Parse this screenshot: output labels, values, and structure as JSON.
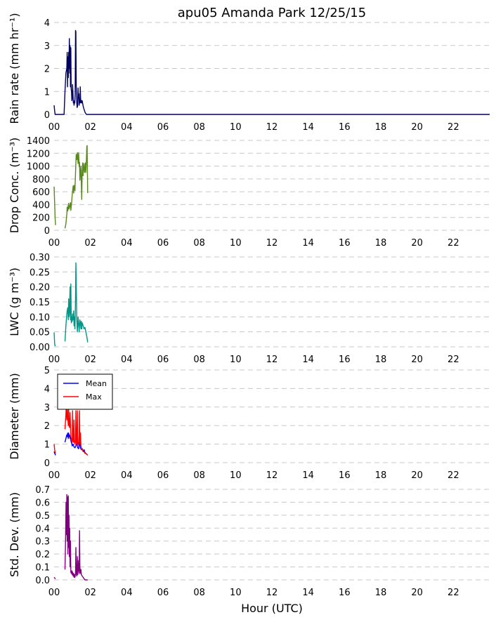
{
  "title": "apu05 Amanda Park 12/25/15",
  "xlabel": "Hour (UTC)",
  "x_tick_labels": [
    "00",
    "02",
    "04",
    "06",
    "08",
    "10",
    "12",
    "14",
    "16",
    "18",
    "20",
    "22"
  ],
  "chart_data": [
    {
      "type": "line",
      "id": "rain",
      "ylabel": "Rain rate (mm hr⁻¹)",
      "ylim": [
        0,
        4
      ],
      "yticks": [
        0,
        1,
        2,
        3,
        4
      ],
      "xlim": [
        0,
        24
      ],
      "grid": true,
      "series": [
        {
          "color": "#000060",
          "x": [
            0.0,
            0.03,
            0.06,
            0.3,
            0.55,
            0.6,
            0.65,
            0.7,
            0.72,
            0.74,
            0.76,
            0.78,
            0.8,
            0.82,
            0.84,
            0.86,
            0.88,
            0.9,
            0.92,
            0.94,
            0.96,
            0.98,
            1.0,
            1.02,
            1.04,
            1.06,
            1.08,
            1.1,
            1.12,
            1.14,
            1.16,
            1.18,
            1.2,
            1.22,
            1.25,
            1.27,
            1.3,
            1.32,
            1.34,
            1.36,
            1.38,
            1.4,
            1.42,
            1.44,
            1.46,
            1.48,
            1.5,
            1.52,
            1.55,
            1.58,
            1.62,
            1.66,
            1.7,
            1.74,
            1.78,
            1.82,
            1.86,
            1.9,
            24.0
          ],
          "y": [
            0.4,
            0.15,
            0.0,
            0.0,
            0.0,
            1.0,
            1.8,
            2.0,
            2.7,
            1.2,
            2.5,
            1.6,
            2.7,
            2.0,
            3.3,
            1.8,
            3.0,
            1.2,
            2.9,
            1.1,
            1.0,
            0.6,
            0.7,
            1.3,
            0.9,
            0.5,
            0.6,
            0.4,
            0.5,
            0.5,
            0.9,
            3.65,
            3.6,
            1.2,
            0.5,
            0.3,
            0.4,
            1.15,
            0.7,
            0.9,
            0.4,
            0.6,
            0.5,
            1.2,
            0.7,
            0.5,
            0.6,
            0.5,
            0.6,
            0.45,
            0.3,
            0.2,
            0.1,
            0.05,
            0.0,
            0.0,
            0.0,
            0.0,
            0.0
          ]
        }
      ]
    },
    {
      "type": "line",
      "id": "conc",
      "ylabel": "Drop Conc. (m⁻³)",
      "ylim": [
        0,
        1400
      ],
      "yticks": [
        0,
        200,
        400,
        600,
        800,
        1000,
        1200,
        1400
      ],
      "xlim": [
        0,
        24
      ],
      "grid": true,
      "series": [
        {
          "color": "#5a8a1e",
          "segments": [
            {
              "x": [
                0.0,
                0.03,
                0.06,
                0.08
              ],
              "y": [
                680,
                420,
                180,
                80
              ]
            },
            {
              "x": [
                0.6,
                0.65,
                0.7,
                0.72,
                0.75,
                0.78,
                0.8,
                0.82,
                0.85,
                0.88,
                0.9,
                0.92,
                0.95,
                0.98,
                1.0,
                1.02,
                1.05,
                1.08,
                1.1,
                1.12,
                1.15,
                1.18,
                1.2,
                1.22,
                1.25,
                1.28,
                1.3,
                1.32,
                1.35,
                1.38,
                1.4,
                1.42,
                1.45,
                1.48,
                1.5,
                1.52,
                1.55,
                1.58,
                1.6,
                1.62,
                1.65,
                1.68,
                1.7,
                1.72,
                1.75,
                1.78,
                1.8,
                1.82,
                1.85
              ],
              "y": [
                30,
                100,
                250,
                360,
                300,
                390,
                420,
                330,
                360,
                400,
                430,
                310,
                380,
                480,
                560,
                600,
                690,
                580,
                700,
                640,
                620,
                900,
                1050,
                1180,
                1100,
                1210,
                1150,
                1040,
                1210,
                990,
                1060,
                780,
                900,
                1000,
                700,
                480,
                920,
                1050,
                850,
                1040,
                960,
                900,
                1030,
                1050,
                900,
                1100,
                1300,
                1320,
                580
              ]
            }
          ]
        }
      ]
    },
    {
      "type": "line",
      "id": "lwc",
      "ylabel": "LWC (g m⁻³)",
      "ylim": [
        0,
        0.3
      ],
      "yticks": [
        0.0,
        0.05,
        0.1,
        0.15,
        0.2,
        0.25,
        0.3
      ],
      "y_tick_labels": [
        "0.00",
        "0.05",
        "0.10",
        "0.15",
        "0.20",
        "0.25",
        "0.30"
      ],
      "xlim": [
        0,
        24
      ],
      "grid": true,
      "series": [
        {
          "color": "#009688",
          "segments": [
            {
              "x": [
                0.0,
                0.03,
                0.06
              ],
              "y": [
                0.048,
                0.01,
                0.002
              ]
            },
            {
              "x": [
                0.6,
                0.65,
                0.7,
                0.72,
                0.75,
                0.78,
                0.8,
                0.82,
                0.85,
                0.88,
                0.9,
                0.92,
                0.95,
                0.98,
                1.0,
                1.02,
                1.05,
                1.08,
                1.1,
                1.12,
                1.15,
                1.18,
                1.2,
                1.22,
                1.25,
                1.28,
                1.3,
                1.32,
                1.35,
                1.38,
                1.4,
                1.42,
                1.45,
                1.48,
                1.5,
                1.52,
                1.55,
                1.58,
                1.6,
                1.65,
                1.7,
                1.75,
                1.8,
                1.85
              ],
              "y": [
                0.018,
                0.07,
                0.11,
                0.12,
                0.13,
                0.09,
                0.16,
                0.1,
                0.12,
                0.2,
                0.09,
                0.21,
                0.08,
                0.1,
                0.085,
                0.11,
                0.09,
                0.12,
                0.07,
                0.1,
                0.06,
                0.16,
                0.28,
                0.22,
                0.09,
                0.05,
                0.07,
                0.1,
                0.08,
                0.05,
                0.07,
                0.09,
                0.08,
                0.06,
                0.085,
                0.06,
                0.08,
                0.075,
                0.07,
                0.06,
                0.065,
                0.05,
                0.035,
                0.015
              ]
            }
          ]
        }
      ]
    },
    {
      "type": "line",
      "id": "diam",
      "ylabel": "Diameter (mm)",
      "ylim": [
        0,
        5
      ],
      "yticks": [
        0,
        1,
        2,
        3,
        4,
        5
      ],
      "xlim": [
        0,
        24
      ],
      "grid": true,
      "legend": {
        "position": "upper-left",
        "entries": [
          {
            "name": "Mean",
            "color": "#0000ff"
          },
          {
            "name": "Max",
            "color": "#ff0000"
          }
        ]
      },
      "series": [
        {
          "name": "Mean",
          "color": "#0000ff",
          "segments": [
            {
              "x": [
                0.0,
                0.03,
                0.06,
                0.08
              ],
              "y": [
                0.6,
                0.5,
                0.45,
                0.4
              ]
            },
            {
              "x": [
                0.6,
                0.65,
                0.7,
                0.72,
                0.75,
                0.78,
                0.8,
                0.82,
                0.85,
                0.88,
                0.9,
                0.92,
                0.95,
                0.98,
                1.0,
                1.05,
                1.1,
                1.15,
                1.2,
                1.25,
                1.3,
                1.35,
                1.4,
                1.45,
                1.5,
                1.55,
                1.6,
                1.65,
                1.7,
                1.75,
                1.8,
                1.85
              ],
              "y": [
                1.1,
                1.3,
                1.5,
                1.4,
                1.6,
                1.3,
                1.6,
                1.4,
                1.5,
                1.3,
                1.4,
                1.2,
                1.1,
                1.0,
                0.9,
                1.0,
                0.85,
                0.8,
                0.9,
                1.1,
                0.8,
                0.75,
                1.1,
                0.8,
                0.7,
                0.75,
                0.6,
                0.7,
                0.55,
                0.5,
                0.45,
                0.4
              ]
            }
          ]
        },
        {
          "name": "Max",
          "color": "#ff0000",
          "segments": [
            {
              "x": [
                0.0,
                0.03,
                0.06,
                0.08
              ],
              "y": [
                1.0,
                0.7,
                0.55,
                0.5
              ]
            },
            {
              "x": [
                0.6,
                0.65,
                0.68,
                0.7,
                0.72,
                0.75,
                0.78,
                0.8,
                0.82,
                0.85,
                0.88,
                0.9,
                0.92,
                0.95,
                0.98,
                1.0,
                1.02,
                1.05,
                1.08,
                1.1,
                1.12,
                1.15,
                1.18,
                1.2,
                1.22,
                1.25,
                1.28,
                1.3,
                1.32,
                1.35,
                1.38,
                1.4,
                1.42,
                1.45,
                1.48,
                1.5,
                1.52,
                1.55,
                1.6,
                1.65,
                1.7,
                1.75,
                1.8,
                1.85
              ],
              "y": [
                1.8,
                2.6,
                3.3,
                2.3,
                3.1,
                2.5,
                2.0,
                2.9,
                2.1,
                1.9,
                2.7,
                2.0,
                1.5,
                1.2,
                1.3,
                1.1,
                2.8,
                1.2,
                1.1,
                2.3,
                1.2,
                1.0,
                1.2,
                2.8,
                1.1,
                1.0,
                2.8,
                0.9,
                1.1,
                1.0,
                1.5,
                2.8,
                1.0,
                1.6,
                0.9,
                0.8,
                0.7,
                0.7,
                0.6,
                0.6,
                0.5,
                0.5,
                0.45,
                0.4
              ]
            }
          ]
        }
      ]
    },
    {
      "type": "line",
      "id": "std",
      "ylabel": "Std. Dev. (mm)",
      "ylim": [
        0,
        0.7
      ],
      "yticks": [
        0.0,
        0.1,
        0.2,
        0.3,
        0.4,
        0.5,
        0.6,
        0.7
      ],
      "y_tick_labels": [
        "0.0",
        "0.1",
        "0.2",
        "0.3",
        "0.4",
        "0.5",
        "0.6",
        "0.7"
      ],
      "xlim": [
        0,
        24
      ],
      "grid": true,
      "series": [
        {
          "color": "#800080",
          "segments": [
            {
              "x": [
                0.0,
                0.03,
                0.06,
                0.08
              ],
              "y": [
                0.02,
                0.015,
                0.01,
                0.01
              ]
            },
            {
              "x": [
                0.6,
                0.63,
                0.66,
                0.68,
                0.7,
                0.72,
                0.74,
                0.76,
                0.78,
                0.8,
                0.82,
                0.84,
                0.86,
                0.88,
                0.9,
                0.92,
                0.95,
                0.98,
                1.0,
                1.02,
                1.05,
                1.08,
                1.1,
                1.12,
                1.15,
                1.18,
                1.2,
                1.22,
                1.25,
                1.28,
                1.3,
                1.32,
                1.35,
                1.38,
                1.4,
                1.42,
                1.45,
                1.48,
                1.5,
                1.55,
                1.6,
                1.65,
                1.7,
                1.75,
                1.8,
                1.85
              ],
              "y": [
                0.08,
                0.3,
                0.6,
                0.35,
                0.66,
                0.3,
                0.64,
                0.2,
                0.65,
                0.25,
                0.5,
                0.18,
                0.4,
                0.1,
                0.3,
                0.06,
                0.05,
                0.07,
                0.04,
                0.06,
                0.03,
                0.05,
                0.02,
                0.04,
                0.02,
                0.05,
                0.25,
                0.05,
                0.03,
                0.18,
                0.04,
                0.15,
                0.08,
                0.05,
                0.38,
                0.1,
                0.05,
                0.08,
                0.04,
                0.03,
                0.02,
                0.01,
                0.0,
                0.0,
                0.0,
                0.0
              ]
            }
          ]
        }
      ]
    }
  ]
}
